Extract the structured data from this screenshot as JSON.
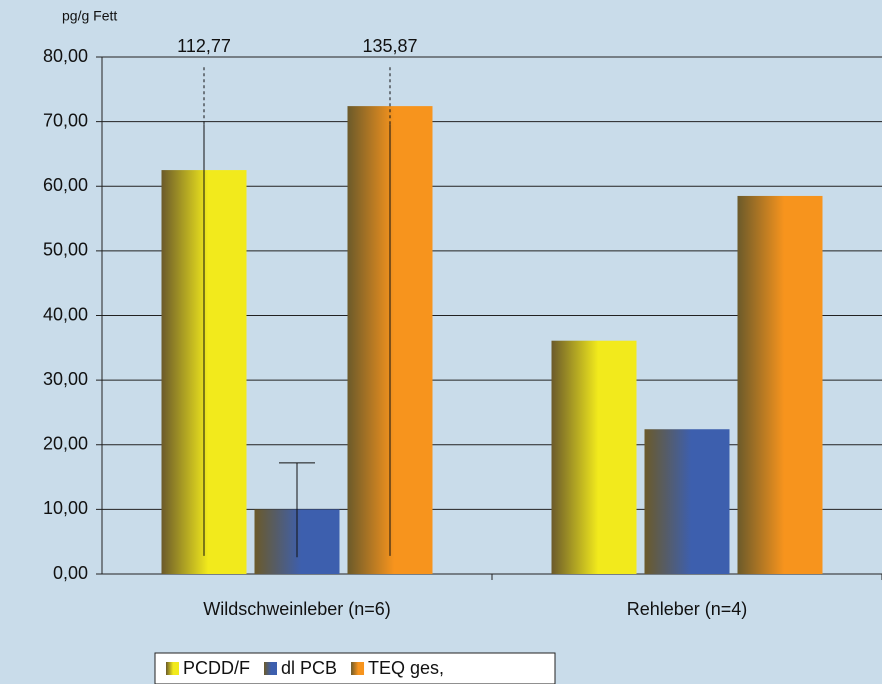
{
  "chart_data": {
    "type": "bar",
    "y_axis_label": "pg/g Fett",
    "categories": [
      "Wildschweinleber (n=6)",
      "Rehleber (n=4)"
    ],
    "series": [
      {
        "name": "PCDD/F",
        "color": "#f2ea1c",
        "values": [
          62.5,
          36.1
        ],
        "error_low": [
          2.8,
          null
        ],
        "error_high": [
          {
            "value": 112.77,
            "label": "112,77"
          },
          null
        ]
      },
      {
        "name": "dl PCB",
        "color": "#3d5fae",
        "values": [
          10.0,
          22.4
        ],
        "error_low": [
          2.6,
          null
        ],
        "error_high": [
          17.2,
          null
        ]
      },
      {
        "name": "TEQ ges,",
        "color": "#f7941d",
        "values": [
          72.4,
          58.5
        ],
        "error_low": [
          2.8,
          null
        ],
        "error_high": [
          {
            "value": 135.87,
            "label": "135,87"
          },
          null
        ]
      }
    ],
    "ylim": [
      0,
      80
    ],
    "yticks": [
      {
        "value": 0,
        "label": "0,00"
      },
      {
        "value": 10,
        "label": "10,00"
      },
      {
        "value": 20,
        "label": "20,00"
      },
      {
        "value": 30,
        "label": "30,00"
      },
      {
        "value": 40,
        "label": "40,00"
      },
      {
        "value": 50,
        "label": "50,00"
      },
      {
        "value": 60,
        "label": "60,00"
      },
      {
        "value": 70,
        "label": "70,00"
      },
      {
        "value": 80,
        "label": "80,00"
      }
    ],
    "grid": true,
    "legend": "bottom"
  }
}
